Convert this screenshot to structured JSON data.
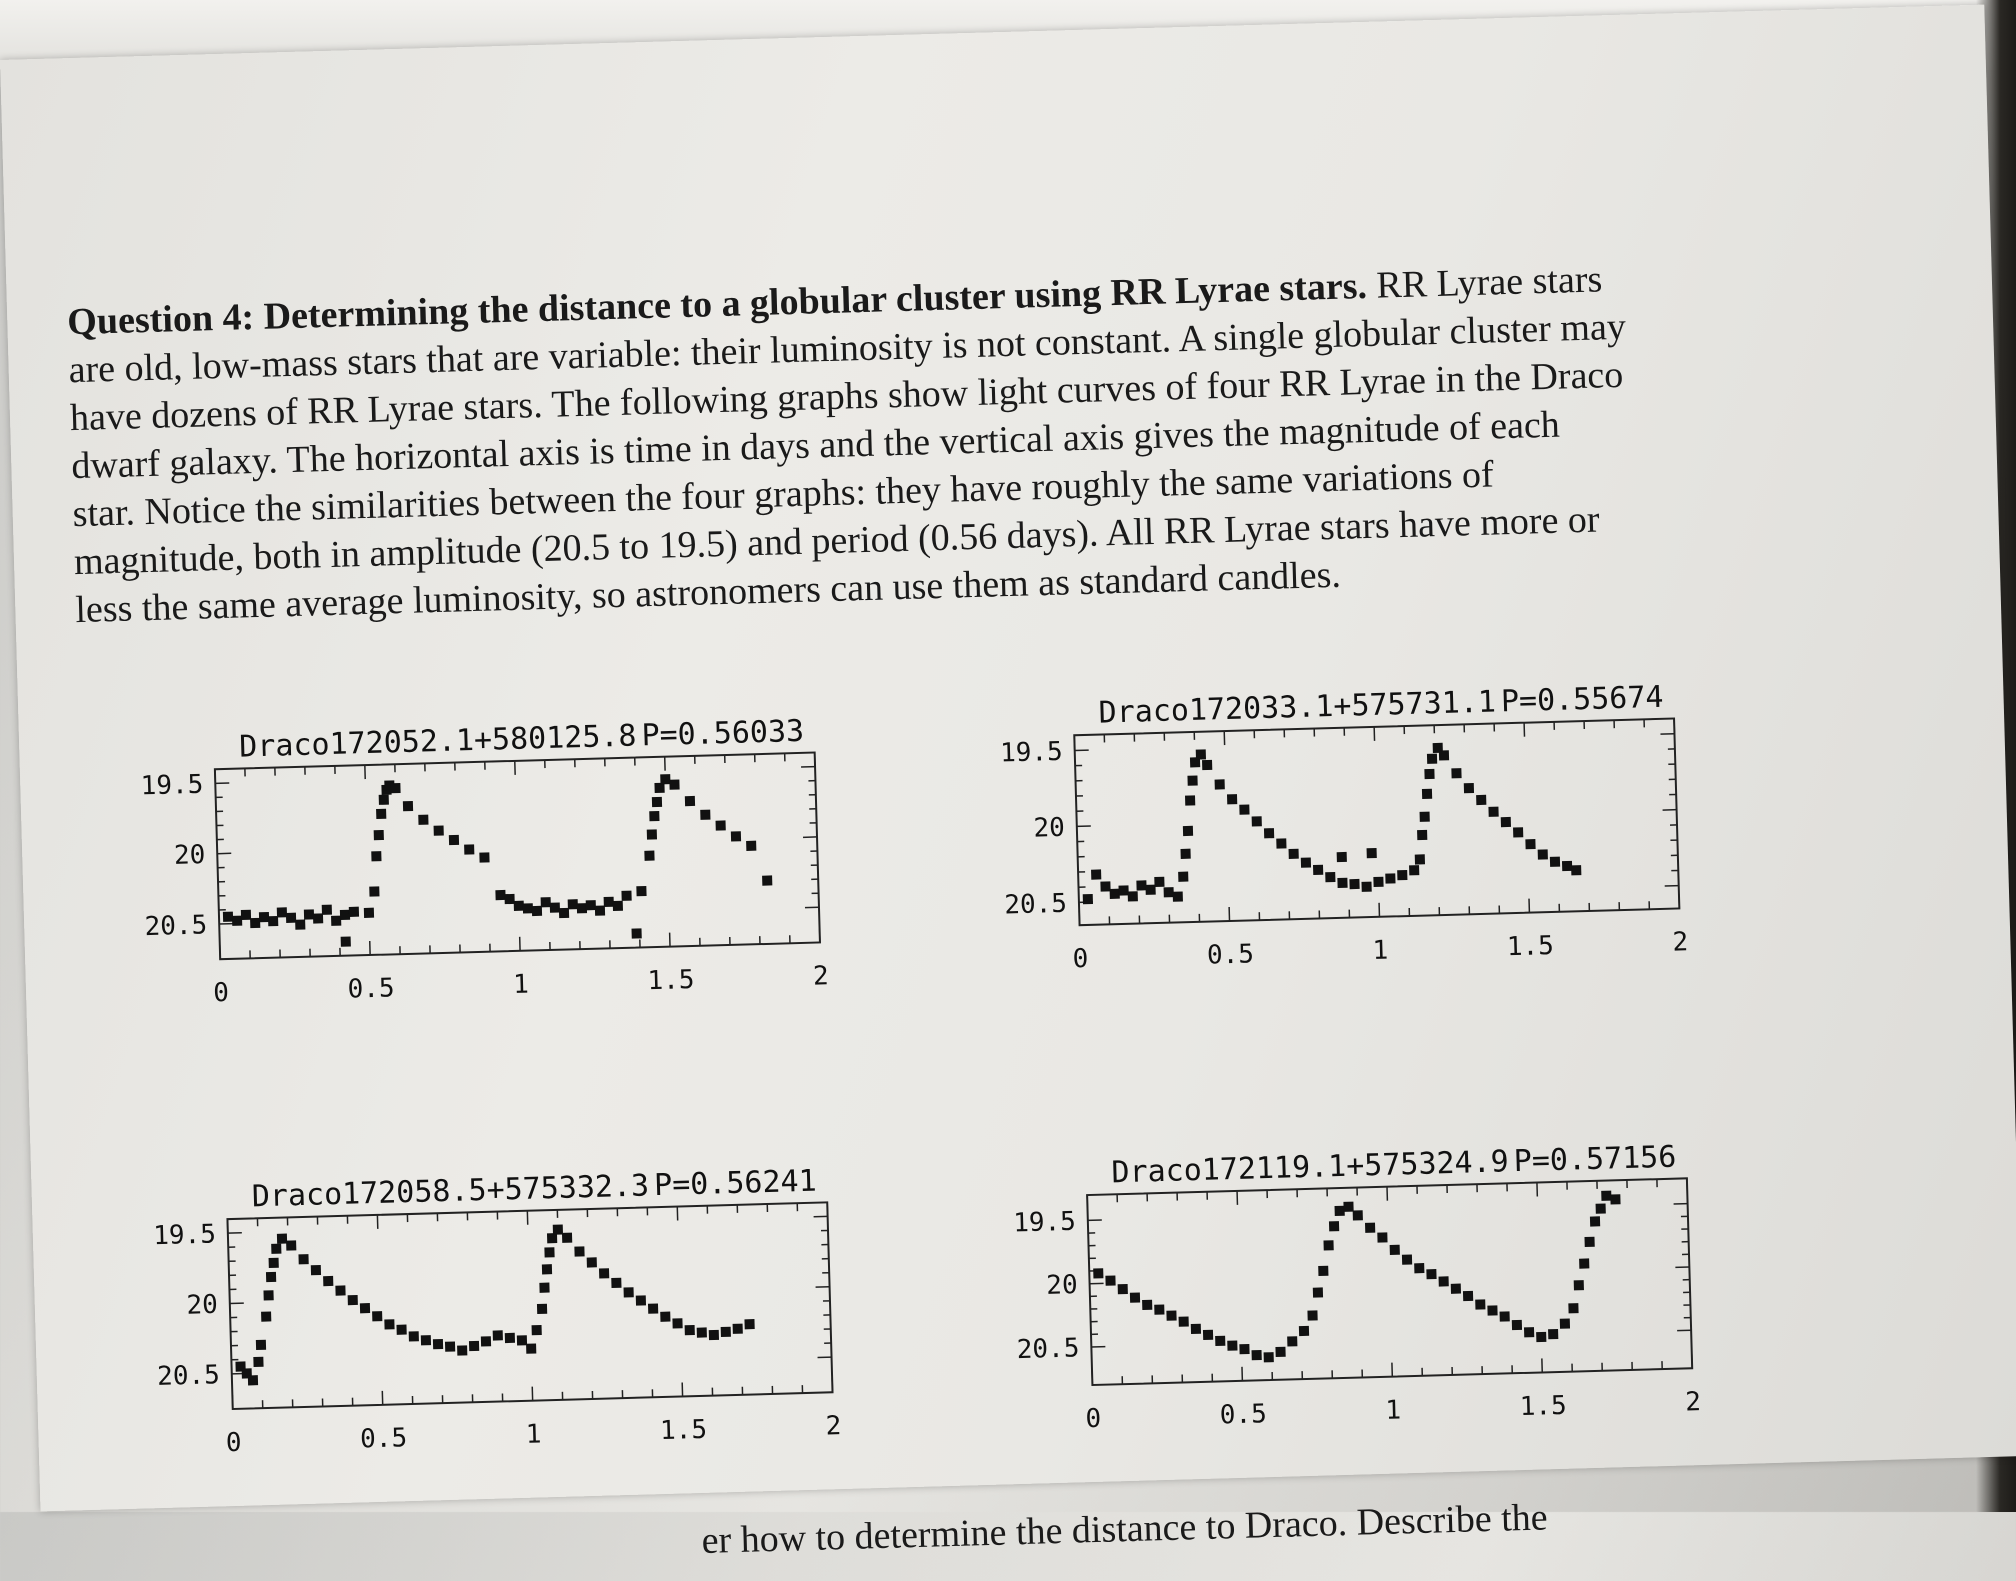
{
  "question": {
    "heading": "Question 4: Determining the distance to a globular cluster using RR Lyrae stars.",
    "lines": [
      "RR Lyrae stars",
      "are old, low-mass stars that are variable: their luminosity is not constant. A single globular cluster may",
      "have dozens of RR Lyrae stars. The following graphs show light curves of four RR Lyrae in the Draco",
      "dwarf galaxy. The horizontal axis is time in days and the vertical axis gives the magnitude of each",
      "star. Notice the similarities between the four graphs: they have roughly the same variations of",
      "magnitude, both in amplitude (20.5 to 19.5) and period (0.56 days). All RR Lyrae stars have more or",
      "less the same average luminosity, so astronomers can use them as standard candles."
    ]
  },
  "bottom_text": "er how to determine the distance to Draco. Describe the",
  "chart_data": [
    {
      "type": "scatter",
      "title": "Draco172052.1+580125.8",
      "period_label": "P=0.56033",
      "period": 0.56033,
      "x_ticks": [
        "0",
        "0.5",
        "1",
        "1.5",
        "2"
      ],
      "y_ticks": [
        "19.5",
        "20",
        "20.5"
      ],
      "xlim": [
        0,
        2
      ],
      "ylim": [
        19.4,
        20.75
      ],
      "y_inverted": true,
      "points": [
        [
          0.03,
          20.45
        ],
        [
          0.06,
          20.48
        ],
        [
          0.09,
          20.44
        ],
        [
          0.12,
          20.5
        ],
        [
          0.15,
          20.46
        ],
        [
          0.18,
          20.49
        ],
        [
          0.21,
          20.43
        ],
        [
          0.24,
          20.47
        ],
        [
          0.27,
          20.52
        ],
        [
          0.3,
          20.45
        ],
        [
          0.33,
          20.48
        ],
        [
          0.36,
          20.42
        ],
        [
          0.39,
          20.5
        ],
        [
          0.42,
          20.46
        ],
        [
          0.45,
          20.44
        ],
        [
          0.5,
          20.45
        ],
        [
          0.52,
          20.3
        ],
        [
          0.53,
          20.05
        ],
        [
          0.54,
          19.9
        ],
        [
          0.55,
          19.75
        ],
        [
          0.56,
          19.65
        ],
        [
          0.57,
          19.58
        ],
        [
          0.58,
          19.55
        ],
        [
          0.6,
          19.57
        ],
        [
          0.64,
          19.7
        ],
        [
          0.69,
          19.8
        ],
        [
          0.74,
          19.88
        ],
        [
          0.79,
          19.95
        ],
        [
          0.84,
          20.02
        ],
        [
          0.89,
          20.08
        ],
        [
          0.94,
          20.35
        ],
        [
          0.97,
          20.38
        ],
        [
          1.0,
          20.43
        ],
        [
          1.03,
          20.45
        ],
        [
          1.06,
          20.47
        ],
        [
          1.09,
          20.41
        ],
        [
          1.12,
          20.45
        ],
        [
          1.15,
          20.49
        ],
        [
          1.18,
          20.43
        ],
        [
          1.21,
          20.46
        ],
        [
          1.24,
          20.44
        ],
        [
          1.27,
          20.48
        ],
        [
          1.3,
          20.42
        ],
        [
          1.33,
          20.45
        ],
        [
          1.36,
          20.38
        ],
        [
          1.39,
          20.65
        ],
        [
          1.41,
          20.35
        ],
        [
          1.44,
          20.1
        ],
        [
          1.45,
          19.95
        ],
        [
          1.46,
          19.82
        ],
        [
          1.47,
          19.72
        ],
        [
          1.48,
          19.62
        ],
        [
          1.5,
          19.56
        ],
        [
          1.53,
          19.6
        ],
        [
          1.58,
          19.72
        ],
        [
          1.63,
          19.82
        ],
        [
          1.68,
          19.9
        ],
        [
          1.73,
          19.98
        ],
        [
          1.78,
          20.05
        ],
        [
          1.83,
          20.3
        ],
        [
          0.42,
          20.65
        ]
      ]
    },
    {
      "type": "scatter",
      "title": "Draco172033.1+575731.1",
      "period_label": "P=0.55674",
      "period": 0.55674,
      "x_ticks": [
        "0",
        "0.5",
        "1",
        "1.5",
        "2"
      ],
      "y_ticks": [
        "19.5",
        "20",
        "20.5"
      ],
      "xlim": [
        0,
        2
      ],
      "ylim": [
        19.4,
        20.65
      ],
      "y_inverted": true,
      "points": [
        [
          0.03,
          20.48
        ],
        [
          0.06,
          20.32
        ],
        [
          0.09,
          20.4
        ],
        [
          0.12,
          20.45
        ],
        [
          0.15,
          20.43
        ],
        [
          0.18,
          20.47
        ],
        [
          0.21,
          20.4
        ],
        [
          0.24,
          20.43
        ],
        [
          0.27,
          20.38
        ],
        [
          0.3,
          20.45
        ],
        [
          0.33,
          20.48
        ],
        [
          0.35,
          20.35
        ],
        [
          0.36,
          20.2
        ],
        [
          0.37,
          20.05
        ],
        [
          0.38,
          19.85
        ],
        [
          0.39,
          19.72
        ],
        [
          0.4,
          19.6
        ],
        [
          0.42,
          19.55
        ],
        [
          0.44,
          19.62
        ],
        [
          0.48,
          19.75
        ],
        [
          0.52,
          19.85
        ],
        [
          0.56,
          19.92
        ],
        [
          0.6,
          20.0
        ],
        [
          0.64,
          20.08
        ],
        [
          0.68,
          20.15
        ],
        [
          0.72,
          20.22
        ],
        [
          0.76,
          20.28
        ],
        [
          0.8,
          20.33
        ],
        [
          0.84,
          20.38
        ],
        [
          0.88,
          20.42
        ],
        [
          0.92,
          20.43
        ],
        [
          0.96,
          20.45
        ],
        [
          1.0,
          20.42
        ],
        [
          1.04,
          20.4
        ],
        [
          1.08,
          20.38
        ],
        [
          1.12,
          20.35
        ],
        [
          1.14,
          20.28
        ],
        [
          1.15,
          20.12
        ],
        [
          1.16,
          20.0
        ],
        [
          1.17,
          19.85
        ],
        [
          1.18,
          19.72
        ],
        [
          1.19,
          19.62
        ],
        [
          1.21,
          19.55
        ],
        [
          1.23,
          19.6
        ],
        [
          1.27,
          19.72
        ],
        [
          1.31,
          19.82
        ],
        [
          1.35,
          19.9
        ],
        [
          1.39,
          19.98
        ],
        [
          1.43,
          20.05
        ],
        [
          1.47,
          20.12
        ],
        [
          1.51,
          20.2
        ],
        [
          1.55,
          20.27
        ],
        [
          1.59,
          20.32
        ],
        [
          1.63,
          20.35
        ],
        [
          1.66,
          20.38
        ],
        [
          0.98,
          20.23
        ],
        [
          0.88,
          20.25
        ]
      ]
    },
    {
      "type": "scatter",
      "title": "Draco172058.5+575332.3",
      "period_label": "P=0.56241",
      "period": 0.56241,
      "x_ticks": [
        "0",
        "0.5",
        "1",
        "1.5",
        "2"
      ],
      "y_ticks": [
        "19.5",
        "20",
        "20.5"
      ],
      "xlim": [
        0,
        2
      ],
      "ylim": [
        19.4,
        20.75
      ],
      "y_inverted": true,
      "points": [
        [
          0.03,
          20.45
        ],
        [
          0.05,
          20.5
        ],
        [
          0.07,
          20.55
        ],
        [
          0.09,
          20.42
        ],
        [
          0.1,
          20.3
        ],
        [
          0.12,
          20.1
        ],
        [
          0.13,
          19.95
        ],
        [
          0.14,
          19.82
        ],
        [
          0.15,
          19.72
        ],
        [
          0.16,
          19.62
        ],
        [
          0.18,
          19.55
        ],
        [
          0.21,
          19.6
        ],
        [
          0.25,
          19.7
        ],
        [
          0.29,
          19.78
        ],
        [
          0.33,
          19.86
        ],
        [
          0.37,
          19.93
        ],
        [
          0.41,
          20.0
        ],
        [
          0.45,
          20.06
        ],
        [
          0.49,
          20.12
        ],
        [
          0.53,
          20.18
        ],
        [
          0.57,
          20.22
        ],
        [
          0.61,
          20.27
        ],
        [
          0.65,
          20.3
        ],
        [
          0.69,
          20.33
        ],
        [
          0.73,
          20.35
        ],
        [
          0.77,
          20.38
        ],
        [
          0.81,
          20.35
        ],
        [
          0.85,
          20.32
        ],
        [
          0.89,
          20.28
        ],
        [
          0.93,
          20.3
        ],
        [
          0.97,
          20.32
        ],
        [
          1.0,
          20.38
        ],
        [
          1.02,
          20.25
        ],
        [
          1.04,
          20.1
        ],
        [
          1.05,
          19.95
        ],
        [
          1.06,
          19.82
        ],
        [
          1.07,
          19.7
        ],
        [
          1.08,
          19.6
        ],
        [
          1.1,
          19.54
        ],
        [
          1.13,
          19.6
        ],
        [
          1.17,
          19.7
        ],
        [
          1.21,
          19.78
        ],
        [
          1.25,
          19.86
        ],
        [
          1.29,
          19.93
        ],
        [
          1.33,
          20.0
        ],
        [
          1.37,
          20.06
        ],
        [
          1.41,
          20.12
        ],
        [
          1.45,
          20.18
        ],
        [
          1.49,
          20.23
        ],
        [
          1.53,
          20.28
        ],
        [
          1.57,
          20.3
        ],
        [
          1.61,
          20.32
        ],
        [
          1.65,
          20.3
        ],
        [
          1.69,
          20.28
        ],
        [
          1.73,
          20.25
        ]
      ]
    },
    {
      "type": "scatter",
      "title": "Draco172119.1+575324.9",
      "period_label": "P=0.57156",
      "period": 0.57156,
      "x_ticks": [
        "0",
        "0.5",
        "1",
        "1.5",
        "2"
      ],
      "y_ticks": [
        "19.5",
        "20",
        "20.5"
      ],
      "xlim": [
        0,
        2
      ],
      "ylim": [
        19.3,
        20.8
      ],
      "y_inverted": true,
      "points": [
        [
          0.03,
          19.92
        ],
        [
          0.07,
          19.98
        ],
        [
          0.11,
          20.05
        ],
        [
          0.15,
          20.12
        ],
        [
          0.19,
          20.18
        ],
        [
          0.23,
          20.22
        ],
        [
          0.27,
          20.27
        ],
        [
          0.31,
          20.32
        ],
        [
          0.35,
          20.38
        ],
        [
          0.39,
          20.43
        ],
        [
          0.43,
          20.48
        ],
        [
          0.47,
          20.52
        ],
        [
          0.51,
          20.55
        ],
        [
          0.55,
          20.6
        ],
        [
          0.59,
          20.62
        ],
        [
          0.63,
          20.58
        ],
        [
          0.67,
          20.5
        ],
        [
          0.71,
          20.42
        ],
        [
          0.74,
          20.3
        ],
        [
          0.76,
          20.12
        ],
        [
          0.78,
          19.95
        ],
        [
          0.8,
          19.75
        ],
        [
          0.82,
          19.6
        ],
        [
          0.84,
          19.48
        ],
        [
          0.87,
          19.45
        ],
        [
          0.9,
          19.52
        ],
        [
          0.94,
          19.62
        ],
        [
          0.98,
          19.7
        ],
        [
          1.02,
          19.8
        ],
        [
          1.06,
          19.88
        ],
        [
          1.1,
          19.95
        ],
        [
          1.14,
          20.0
        ],
        [
          1.18,
          20.06
        ],
        [
          1.22,
          20.12
        ],
        [
          1.26,
          20.18
        ],
        [
          1.3,
          20.25
        ],
        [
          1.34,
          20.3
        ],
        [
          1.38,
          20.35
        ],
        [
          1.42,
          20.42
        ],
        [
          1.46,
          20.48
        ],
        [
          1.5,
          20.52
        ],
        [
          1.54,
          20.5
        ],
        [
          1.58,
          20.42
        ],
        [
          1.61,
          20.3
        ],
        [
          1.63,
          20.12
        ],
        [
          1.65,
          19.95
        ],
        [
          1.67,
          19.78
        ],
        [
          1.69,
          19.62
        ],
        [
          1.71,
          19.52
        ],
        [
          1.73,
          19.42
        ],
        [
          1.76,
          19.45
        ]
      ]
    }
  ]
}
